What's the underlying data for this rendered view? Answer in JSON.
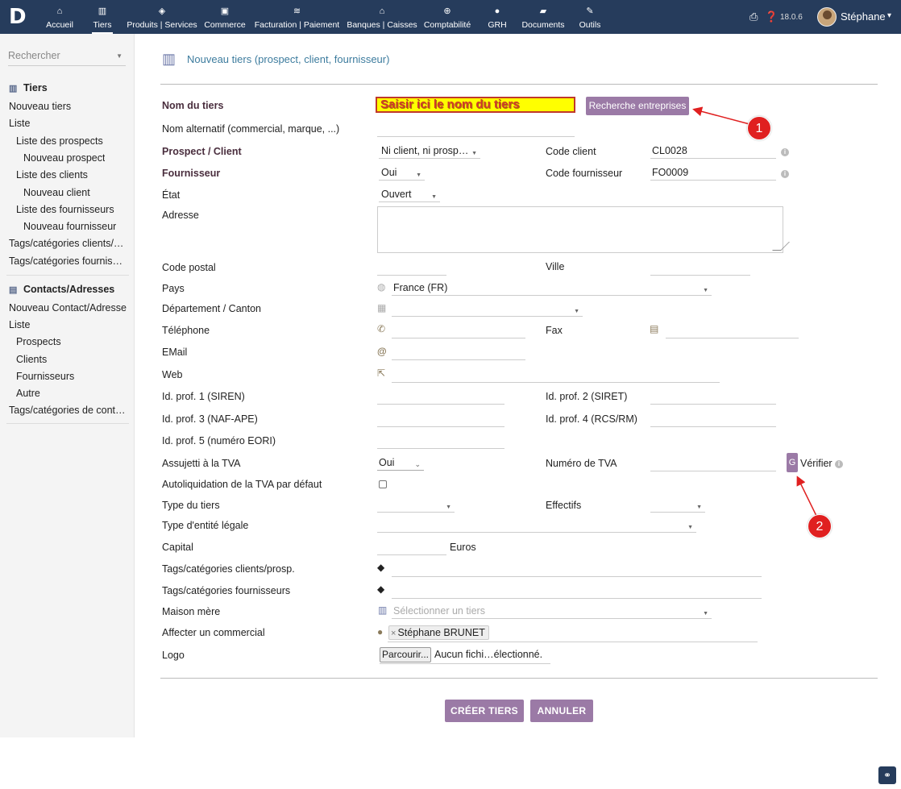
{
  "app": {
    "logo": "D"
  },
  "nav": {
    "items": [
      {
        "label": "Accueil",
        "icon": "home-icon"
      },
      {
        "label": "Tiers",
        "icon": "building-icon"
      },
      {
        "label": "Produits | Services",
        "icon": "cube-icon"
      },
      {
        "label": "Commerce",
        "icon": "briefcase-icon"
      },
      {
        "label": "Facturation | Paiement",
        "icon": "coins-icon"
      },
      {
        "label": "Banques | Caisses",
        "icon": "bank-icon"
      },
      {
        "label": "Comptabilité",
        "icon": "search-dollar-icon"
      },
      {
        "label": "GRH",
        "icon": "user-icon"
      },
      {
        "label": "Documents",
        "icon": "folder-icon"
      },
      {
        "label": "Outils",
        "icon": "wrench-icon"
      }
    ],
    "version": "18.0.6",
    "username": "Stéphane"
  },
  "leftmenu": {
    "search_placeholder": "Rechercher",
    "tiers_title": "Tiers",
    "tiers_links": [
      "Nouveau tiers",
      "Liste",
      "Liste des prospects",
      "Nouveau prospect",
      "Liste des clients",
      "Nouveau client",
      "Liste des fournisseurs",
      "Nouveau fournisseur",
      "Tags/catégories clients/…",
      "Tags/catégories fournis…"
    ],
    "contacts_title": "Contacts/Adresses",
    "contacts_links": [
      "Nouveau Contact/Adresse",
      "Liste",
      "Prospects",
      "Clients",
      "Fournisseurs",
      "Autre",
      "Tags/catégories de cont…"
    ]
  },
  "page": {
    "title": "Nouveau tiers (prospect, client, fournisseur)"
  },
  "form": {
    "name_label": "Nom du tiers",
    "name_value": "Saisir ici le nom du tiers",
    "search_companies_button": "Recherche entreprises",
    "alt_name_label": "Nom alternatif (commercial, marque, ...)",
    "prospect_client_label": "Prospect / Client",
    "prospect_client_value": "Ni client, ni prosp…",
    "client_code_label": "Code client",
    "client_code_value": "CL0028",
    "supplier_label": "Fournisseur",
    "supplier_value": "Oui",
    "supplier_code_label": "Code fournisseur",
    "supplier_code_value": "FO0009",
    "state_label": "État",
    "state_value": "Ouvert",
    "address_label": "Adresse",
    "zip_label": "Code postal",
    "city_label": "Ville",
    "country_label": "Pays",
    "country_value": "France (FR)",
    "department_label": "Département / Canton",
    "phone_label": "Téléphone",
    "fax_label": "Fax",
    "email_label": "EMail",
    "web_label": "Web",
    "prof1_label": "Id. prof. 1 (SIREN)",
    "prof2_label": "Id. prof. 2 (SIRET)",
    "prof3_label": "Id. prof. 3 (NAF-APE)",
    "prof4_label": "Id. prof. 4 (RCS/RM)",
    "prof5_label": "Id. prof. 5 (numéro EORI)",
    "vat_subject_label": "Assujetti à la TVA",
    "vat_subject_value": "Oui",
    "vat_number_label": "Numéro de TVA",
    "verify_button_letter": "G",
    "verify_label": "Vérifier",
    "reverse_charge_label": "Autoliquidation de la TVA par défaut",
    "type_label": "Type du tiers",
    "staff_label": "Effectifs",
    "legal_entity_label": "Type d'entité légale",
    "capital_label": "Capital",
    "capital_unit": "Euros",
    "tags_customers_label": "Tags/catégories clients/prosp.",
    "tags_suppliers_label": "Tags/catégories fournisseurs",
    "parent_label": "Maison mère",
    "parent_placeholder": "Sélectionner un tiers",
    "sales_rep_label": "Affecter un commercial",
    "sales_rep_value": "Stéphane BRUNET",
    "logo_label": "Logo",
    "browse_button": "Parcourir...",
    "file_status": "Aucun fichi…électionné.",
    "create_button": "CRÉER TIERS",
    "cancel_button": "ANNULER"
  },
  "annotations": {
    "callout1": "1",
    "callout2": "2",
    "arrow_color": "#e02020"
  },
  "colors": {
    "topbar": "#263c5c",
    "accent_purple": "#9b7aa6",
    "title_teal": "#3d7c9e"
  }
}
